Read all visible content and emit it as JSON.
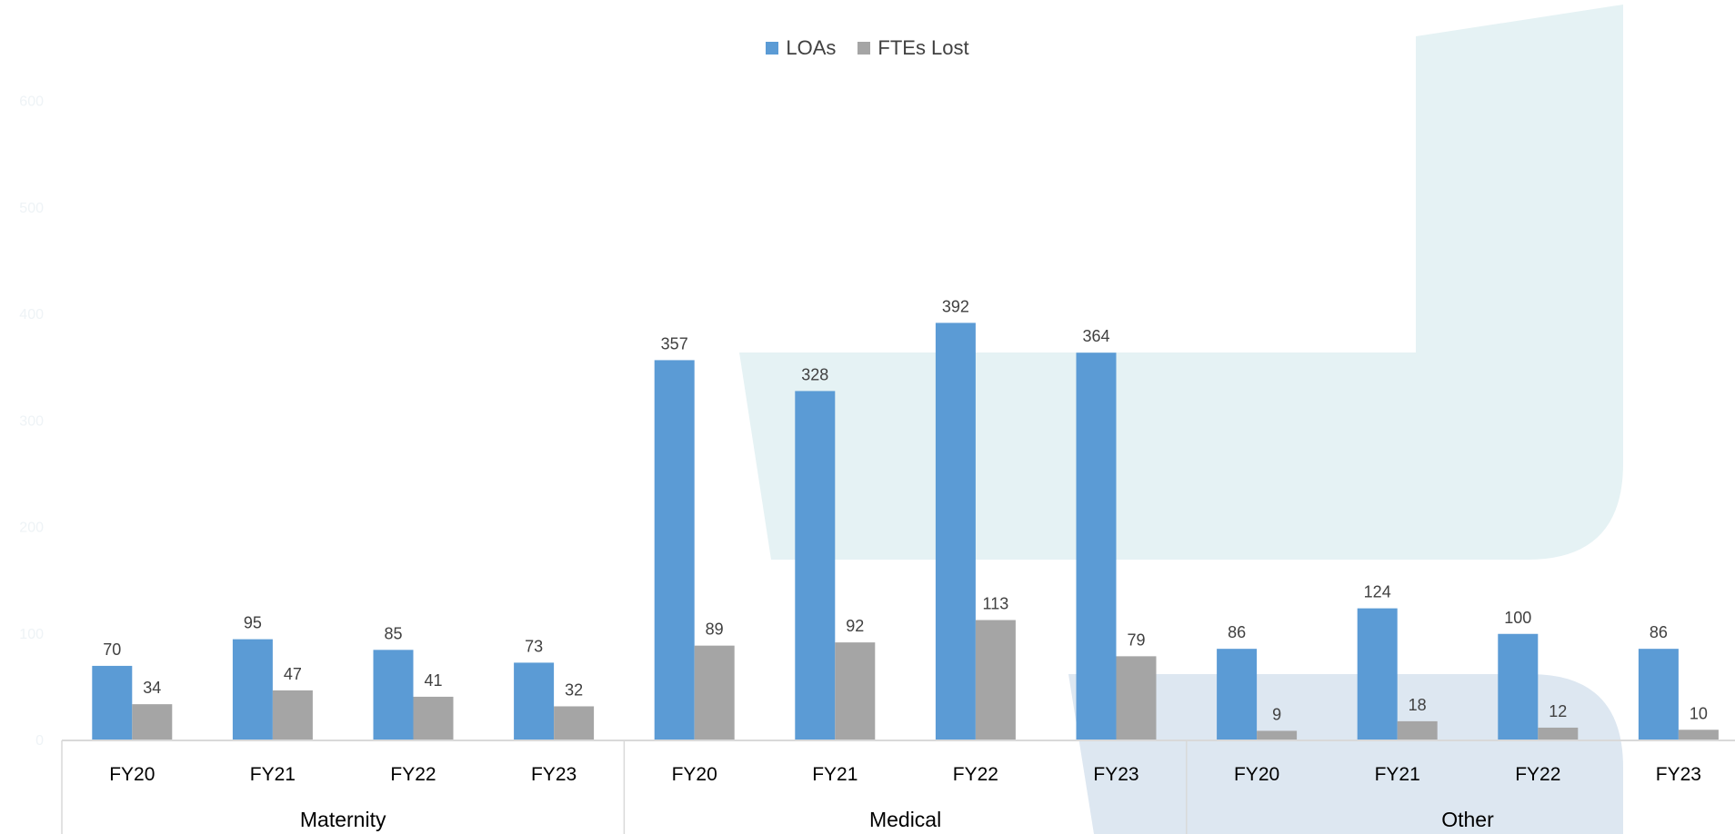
{
  "colors": {
    "loas": "#5b9bd5",
    "ftes_lost": "#a5a5a5",
    "axis": "#d9d9d9",
    "bg_teal": "#e5f2f4",
    "bg_blue": "#dde7f1"
  },
  "chart_data": {
    "type": "bar",
    "legend_position": "top-center",
    "grid": false,
    "ylim": [
      0,
      600
    ],
    "yticks": [
      0,
      100,
      200,
      300,
      400,
      500,
      600
    ],
    "groups": [
      {
        "name": "Maternity",
        "categories": [
          "FY20",
          "FY21",
          "FY22",
          "FY23"
        ]
      },
      {
        "name": "Medical",
        "categories": [
          "FY20",
          "FY21",
          "FY22",
          "FY23"
        ]
      },
      {
        "name": "Other",
        "categories": [
          "FY20",
          "FY21",
          "FY22",
          "FY23"
        ]
      }
    ],
    "series": [
      {
        "name": "LOAs",
        "values": [
          70,
          95,
          85,
          73,
          357,
          328,
          392,
          364,
          86,
          124,
          100,
          86
        ]
      },
      {
        "name": "FTEs Lost",
        "values": [
          34,
          47,
          41,
          32,
          89,
          92,
          113,
          79,
          9,
          18,
          12,
          10
        ]
      }
    ]
  }
}
